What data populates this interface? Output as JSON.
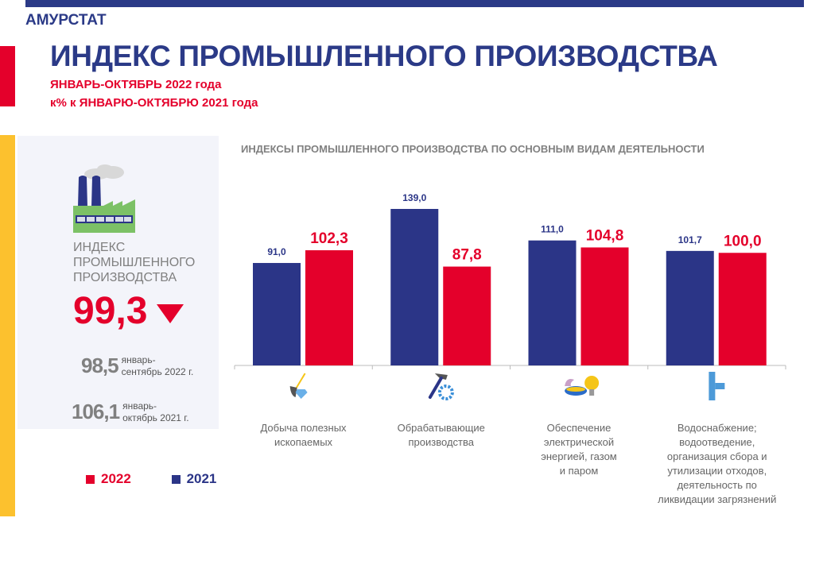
{
  "header": {
    "org": "АМУРСТАТ",
    "title": "ИНДЕКС ПРОМЫШЛЕННОГО ПРОИЗВОДСТВА",
    "subtitle1": "ЯНВАРЬ-ОКТЯБРЬ  2022 года",
    "subtitle2": "к% к ЯНВАРЮ-ОКТЯБРЮ  2021 года"
  },
  "panel": {
    "icon": "factory-icon",
    "title_lines": [
      "ИНДЕКС",
      "ПРОМЫШЛЕННОГО",
      "ПРОИЗВОДСТВА"
    ],
    "value": "99,3",
    "trend": "down",
    "compare": [
      {
        "value": "98,5",
        "label1": "январь-",
        "label2": "сентябрь 2022 г."
      },
      {
        "value": "106,1",
        "label1": "январь-",
        "label2": "октябрь 2021 г."
      }
    ]
  },
  "legend": [
    {
      "label": "2022",
      "color": "#e4002b"
    },
    {
      "label": "2021",
      "color": "#2b3587"
    }
  ],
  "chart_data": {
    "type": "bar",
    "title": "ИНДЕКСЫ ПРОМЫШЛЕННОГО ПРОИЗВОДСТВА ПО ОСНОВНЫМ ВИДАМ ДЕЯТЕЛЬНОСТИ",
    "categories": [
      "Добыча полезных ископаемых",
      "Обрабатывающие производства",
      "Обеспечение электрической энергией, газом и паром",
      "Водоснабжение; водоотведение, организация сбора и утилизации отходов, деятельность по ликвидации загрязнений"
    ],
    "category_icons": [
      "shovel-diamond-icon",
      "hammer-gear-icon",
      "gas-bulb-icon",
      "pipe-icon"
    ],
    "series": [
      {
        "name": "2021",
        "color": "#2b3587",
        "values": [
          91.0,
          139.0,
          111.0,
          101.7
        ],
        "labels": [
          "91,0",
          "139,0",
          "111,0",
          "101,7"
        ]
      },
      {
        "name": "2022",
        "color": "#e4002b",
        "values": [
          102.3,
          87.8,
          104.8,
          100.0
        ],
        "labels": [
          "102,3",
          "87,8",
          "104,8",
          "100,0"
        ]
      }
    ],
    "ylim": [
      0,
      150
    ],
    "grid": false,
    "legend": "bottom-left"
  }
}
